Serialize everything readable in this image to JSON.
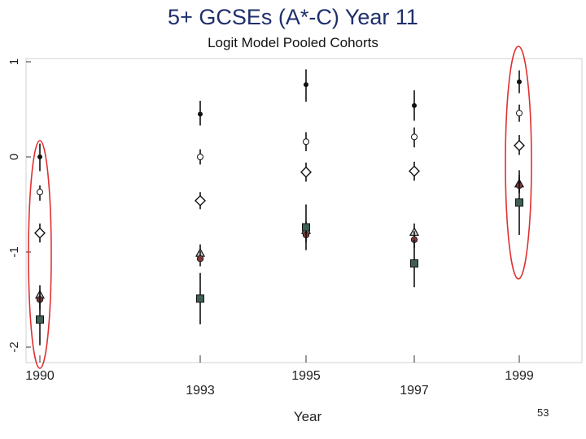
{
  "page": {
    "number": "53"
  },
  "colors": {
    "title": "#1f2f6b",
    "highlight": "#e03030",
    "marker": "#111111",
    "square_fill": "#3f5f52"
  },
  "chart_data": {
    "type": "scatter",
    "title": "5+ GCSEs (A*-C) Year 11",
    "subtitle": "Logit Model Pooled Cohorts",
    "xlabel": "Year",
    "ylabel": "",
    "categories": [
      "1990",
      "1993",
      "1995",
      "1997",
      "1999"
    ],
    "yticks": [
      "1",
      "0",
      "-1",
      "-2"
    ],
    "ylim": [
      -2.1,
      1.1
    ],
    "grid": false,
    "highlighted_categories": [
      "1990",
      "1999"
    ],
    "series": [
      {
        "name": "filled-circle",
        "marker": "dot",
        "values": [
          0.0,
          0.45,
          0.76,
          0.54,
          0.79
        ],
        "ci_low": [
          -0.15,
          0.33,
          0.58,
          0.38,
          0.67
        ],
        "ci_high": [
          0.14,
          0.59,
          0.92,
          0.7,
          0.91
        ]
      },
      {
        "name": "small-open-circle",
        "marker": "small-circle",
        "values": [
          -0.37,
          0.0,
          0.16,
          0.21,
          0.46
        ],
        "ci_low": [
          -0.46,
          -0.08,
          0.06,
          0.1,
          0.37
        ],
        "ci_high": [
          -0.3,
          0.08,
          0.26,
          0.31,
          0.55
        ]
      },
      {
        "name": "open-diamond",
        "marker": "diamond",
        "values": [
          -0.8,
          -0.46,
          -0.16,
          -0.15,
          0.12
        ],
        "ci_low": [
          -0.9,
          -0.55,
          -0.26,
          -0.25,
          0.02
        ],
        "ci_high": [
          -0.7,
          -0.37,
          -0.06,
          -0.05,
          0.23
        ]
      },
      {
        "name": "triangle",
        "marker": "triangle",
        "values": [
          -1.45,
          -1.01,
          -0.77,
          -0.79,
          -0.28
        ],
        "ci_low": [
          -1.55,
          -1.1,
          -0.86,
          -0.88,
          -0.37
        ],
        "ci_high": [
          -1.35,
          -0.92,
          -0.68,
          -0.7,
          -0.19
        ]
      },
      {
        "name": "red-circle",
        "marker": "red-dot",
        "values": [
          -1.5,
          -1.07,
          -0.82,
          -0.87,
          -0.3
        ],
        "ci_low": [
          -1.6,
          -1.15,
          -0.9,
          -0.96,
          -0.38
        ],
        "ci_high": [
          -1.4,
          -0.99,
          -0.74,
          -0.78,
          -0.22
        ]
      },
      {
        "name": "filled-square",
        "marker": "square",
        "values": [
          -1.71,
          -1.49,
          -0.74,
          -1.12,
          -0.48
        ],
        "ci_low": [
          -1.98,
          -1.76,
          -0.98,
          -1.37,
          -0.82
        ],
        "ci_high": [
          -1.44,
          -1.22,
          -0.5,
          -0.87,
          -0.14
        ]
      }
    ]
  }
}
